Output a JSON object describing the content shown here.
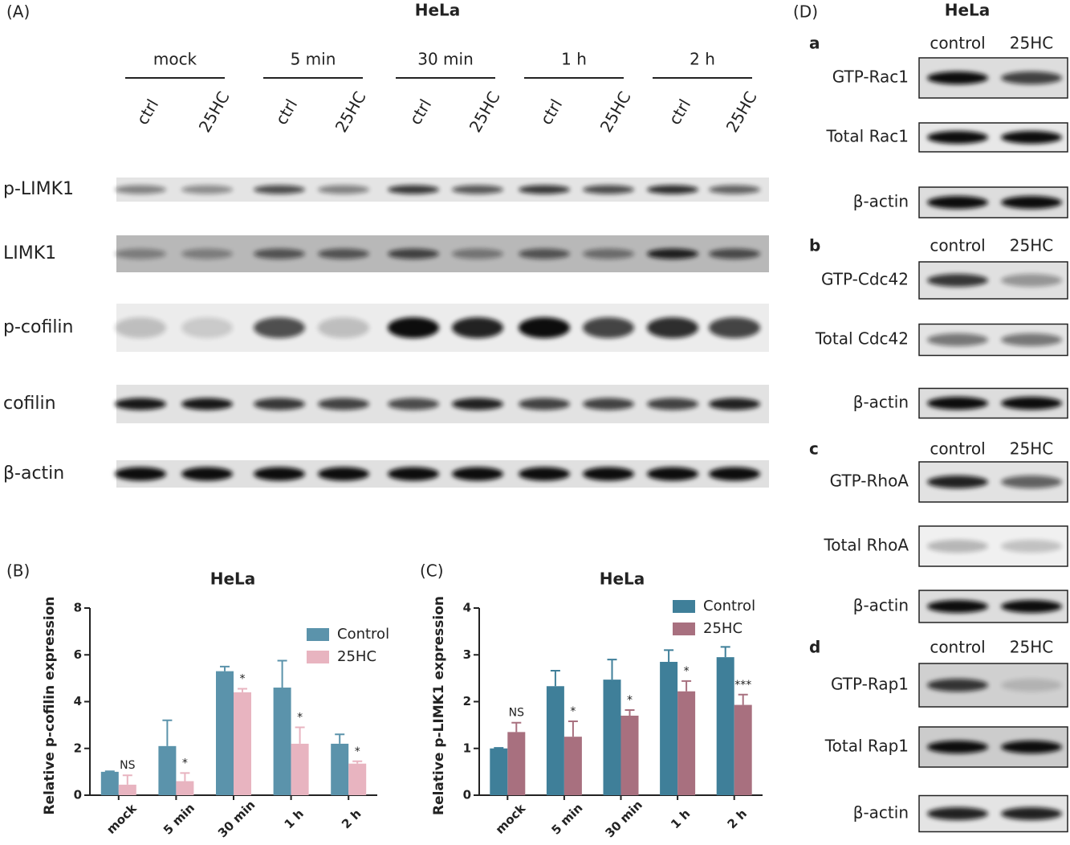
{
  "panel_a": {
    "panel_label": "(A)",
    "title": "HeLa",
    "groups": [
      "mock",
      "5 min",
      "30 min",
      "1 h",
      "2 h"
    ],
    "lanes": [
      "ctrl",
      "25HC",
      "ctrl",
      "25HC",
      "ctrl",
      "25HC",
      "ctrl",
      "25HC",
      "ctrl",
      "25HC"
    ],
    "rows": [
      "p-LIMK1",
      "LIMK1",
      "p-cofilin",
      "cofilin",
      "β-actin"
    ]
  },
  "panel_d": {
    "panel_label": "(D)",
    "title": "HeLa",
    "subpanels": [
      {
        "letter": "a",
        "columns": [
          "control",
          "25HC"
        ],
        "rows": [
          "GTP-Rac1",
          "Total Rac1",
          "β-actin"
        ]
      },
      {
        "letter": "b",
        "columns": [
          "control",
          "25HC"
        ],
        "rows": [
          "GTP-Cdc42",
          "Total Cdc42",
          "β-actin"
        ]
      },
      {
        "letter": "c",
        "columns": [
          "control",
          "25HC"
        ],
        "rows": [
          "GTP-RhoA",
          "Total RhoA",
          "β-actin"
        ]
      },
      {
        "letter": "d",
        "columns": [
          "control",
          "25HC"
        ],
        "rows": [
          "GTP-Rap1",
          "Total Rap1",
          "β-actin"
        ]
      }
    ]
  },
  "chart_data": [
    {
      "type": "bar",
      "panel_label": "(B)",
      "title": "HeLa",
      "y_label": "Relative p-cofilin expression",
      "categories": [
        "mock",
        "5 min",
        "30 min",
        "1 h",
        "2 h"
      ],
      "ylim": [
        0,
        8
      ],
      "yticks": [
        0,
        2,
        4,
        6,
        8
      ],
      "legend": "top-right",
      "series": [
        {
          "name": "Control",
          "color": "#5b93ab",
          "values": [
            1.0,
            2.1,
            5.3,
            4.6,
            2.2
          ],
          "errors": [
            0.02,
            1.1,
            0.2,
            1.15,
            0.4
          ]
        },
        {
          "name": "25HC",
          "color": "#e8b4c0",
          "values": [
            0.45,
            0.6,
            4.4,
            2.2,
            1.35
          ],
          "errors": [
            0.4,
            0.35,
            0.15,
            0.7,
            0.1
          ],
          "annotations": [
            "NS",
            "*",
            "*",
            "*",
            "*"
          ]
        }
      ]
    },
    {
      "type": "bar",
      "panel_label": "(C)",
      "title": "HeLa",
      "y_label": "Relative p-LIMK1 expression",
      "categories": [
        "mock",
        "5 min",
        "30 min",
        "1 h",
        "2 h"
      ],
      "ylim": [
        0,
        4
      ],
      "yticks": [
        0,
        1,
        2,
        3,
        4
      ],
      "legend": "top-right",
      "series": [
        {
          "name": "Control",
          "color": "#3f7f99",
          "values": [
            1.0,
            2.33,
            2.47,
            2.85,
            2.95
          ],
          "errors": [
            0.01,
            0.33,
            0.43,
            0.25,
            0.22
          ]
        },
        {
          "name": "25HC",
          "color": "#a8707f",
          "values": [
            1.35,
            1.25,
            1.7,
            2.22,
            1.93
          ],
          "errors": [
            0.2,
            0.33,
            0.12,
            0.22,
            0.22
          ],
          "annotations": [
            "NS",
            "*",
            "*",
            "*",
            "***"
          ]
        }
      ]
    }
  ]
}
